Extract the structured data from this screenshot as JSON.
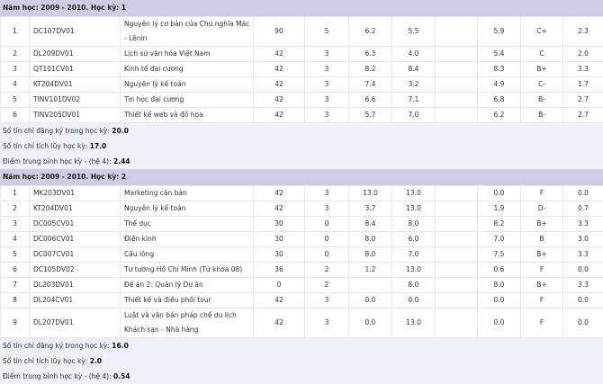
{
  "semesters": [
    {
      "title": "Năm học: 2009 - 2010. Học kỳ: 1",
      "rows": [
        [
          "1",
          "DC107DV01",
          "Nguyên lý cơ bản của Chủ nghĩa Mác - Lênin",
          "90",
          "5",
          "6.2",
          "5.5",
          "",
          "5.9",
          "C+",
          "2.3"
        ],
        [
          "2",
          "DL209DV01",
          "Lịch sử văn hóa Việt Nam",
          "42",
          "3",
          "6.3",
          "4.0",
          "",
          "5.4",
          "C",
          "2.0"
        ],
        [
          "3",
          "QT101CV01",
          "Kinh tế đại cương",
          "42",
          "3",
          "8.2",
          "8.4",
          "",
          "8.3",
          "B+",
          "3.3"
        ],
        [
          "4",
          "KT204DV01",
          "Nguyên lý kế toán",
          "42",
          "3",
          "7.4",
          "3.2",
          "",
          "4.9",
          "C-",
          "1.7"
        ],
        [
          "5",
          "TINV101DV02",
          "Tin học đại cương",
          "42",
          "3",
          "6.6",
          "7.1",
          "",
          "6.8",
          "B-",
          "2.7"
        ],
        [
          "6",
          "TINV205DV01",
          "Thiết kế web và đồ họa",
          "42",
          "3",
          "5.7",
          "7.0",
          "",
          "6.2",
          "B-",
          "2.7"
        ]
      ],
      "summary": [
        {
          "label": "Số tín chỉ đăng ký trong học kỳ: ",
          "value": "20.0"
        },
        {
          "label": "Số tín chỉ tích lũy học kỳ: ",
          "value": "17.0"
        },
        {
          "label": "Điểm trung bình học kỳ - (hệ 4): ",
          "value": "2.44"
        }
      ]
    },
    {
      "title": "Năm học: 2009 - 2010. Học kỳ: 2",
      "rows": [
        [
          "1",
          "MK203DV01",
          "Marketing căn bản",
          "42",
          "3",
          "13.0",
          "13.0",
          "",
          "0.0",
          "F",
          "0.0"
        ],
        [
          "2",
          "KT204DV01",
          "Nguyên lý kế toán",
          "42",
          "3",
          "3.7",
          "13.0",
          "",
          "1.9",
          "D-",
          "0.7"
        ],
        [
          "3",
          "DC005CV01",
          "Thể dục",
          "30",
          "0",
          "8.4",
          "8.0",
          "",
          "8.2",
          "B+",
          "3.3"
        ],
        [
          "4",
          "DC006CV01",
          "Điền kinh",
          "30",
          "0",
          "8.0",
          "6.0",
          "",
          "7.0",
          "B",
          "3.0"
        ],
        [
          "5",
          "DC007CV01",
          "Cầu lông",
          "30",
          "0",
          "8.0",
          "7.0",
          "",
          "7.5",
          "B+",
          "3.3"
        ],
        [
          "6",
          "DC105DV02",
          "Tư tưởng Hồ Chí Minh (Từ khóa 08)",
          "36",
          "2",
          "1.2",
          "13.0",
          "",
          "0.6",
          "F",
          "0.0"
        ],
        [
          "7",
          "DL203DV01",
          "Đề án 2: Quản lý Dự án",
          "0",
          "2",
          "",
          "8.0",
          "",
          "8.0",
          "B+",
          "3.3"
        ],
        [
          "8",
          "DL204CV01",
          "Thiết kế và điều phối tour",
          "42",
          "3",
          "0.0",
          "0.0",
          "",
          "0.0",
          "F",
          "0.0"
        ],
        [
          "9",
          "DL207DV01",
          "Luật và văn bản pháp chế du lịch Khách sạn - Nhà hàng",
          "42",
          "3",
          "0.0",
          "13.0",
          "",
          "0.0",
          "F",
          "0.0"
        ]
      ],
      "summary": [
        {
          "label": "Số tín chỉ đăng ký trong học kỳ: ",
          "value": "16.0"
        },
        {
          "label": "Số tín chỉ tích lũy học kỳ: ",
          "value": "2.0"
        },
        {
          "label": "Điểm trung bình học kỳ - (hệ 4): ",
          "value": "0.54"
        }
      ]
    }
  ]
}
